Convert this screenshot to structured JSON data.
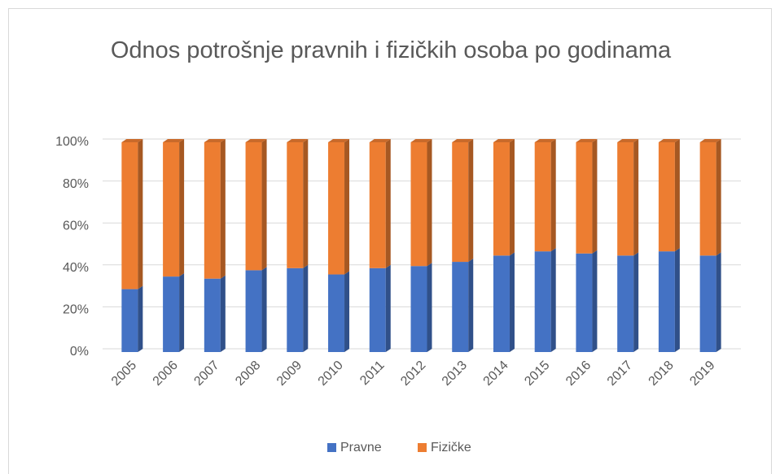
{
  "chart_data": {
    "type": "bar",
    "stacked": true,
    "title": "Odnos potrošnje pravnih i fizičkih osoba po godinama",
    "categories": [
      "2005",
      "2006",
      "2007",
      "2008",
      "2009",
      "2010",
      "2011",
      "2012",
      "2013",
      "2014",
      "2015",
      "2016",
      "2017",
      "2018",
      "2019"
    ],
    "series": [
      {
        "name": "Pravne",
        "color": "#4472c4",
        "values": [
          30,
          36,
          35,
          39,
          40,
          37,
          40,
          41,
          43,
          46,
          48,
          47,
          46,
          48,
          46
        ]
      },
      {
        "name": "Fizičke",
        "color": "#ed7d31",
        "values": [
          70,
          64,
          65,
          61,
          60,
          63,
          60,
          59,
          57,
          54,
          52,
          53,
          54,
          52,
          54
        ]
      }
    ],
    "ylim": [
      0,
      100
    ],
    "yticks": [
      {
        "value": 0,
        "label": "0%"
      },
      {
        "value": 20,
        "label": "20%"
      },
      {
        "value": 40,
        "label": "40%"
      },
      {
        "value": 60,
        "label": "60%"
      },
      {
        "value": 80,
        "label": "80%"
      },
      {
        "value": 100,
        "label": "100%"
      }
    ],
    "grid": true,
    "legend": "bottom"
  }
}
